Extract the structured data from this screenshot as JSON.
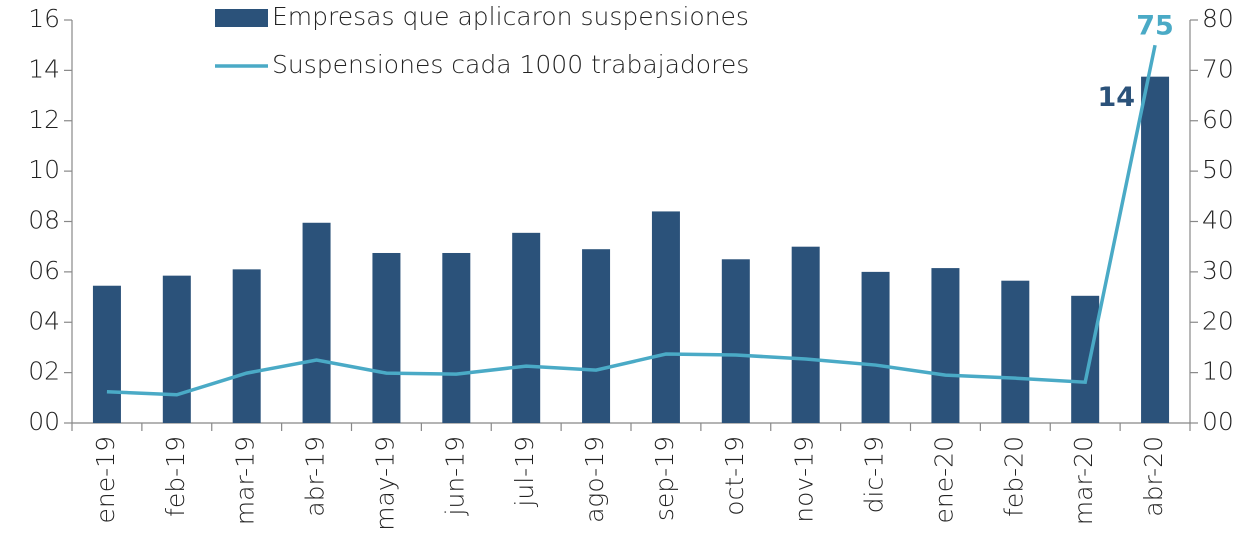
{
  "chart_data": {
    "type": "bar_line",
    "categories": [
      "ene-19",
      "feb-19",
      "mar-19",
      "abr-19",
      "may-19",
      "jun-19",
      "jul-19",
      "ago-19",
      "sep-19",
      "oct-19",
      "nov-19",
      "dic-19",
      "ene-20",
      "feb-20",
      "mar-20",
      "abr-20"
    ],
    "series": [
      {
        "name": "Empresas que aplicaron suspensiones",
        "type": "bar",
        "color": "#2b527a",
        "axis": "y",
        "values": [
          5.45,
          5.85,
          6.1,
          7.95,
          6.75,
          6.75,
          7.55,
          6.9,
          8.4,
          6.5,
          7.0,
          6.0,
          6.15,
          5.65,
          5.05,
          13.75
        ],
        "value_labels": [
          null,
          null,
          null,
          null,
          null,
          null,
          null,
          null,
          null,
          null,
          null,
          null,
          null,
          null,
          null,
          "14"
        ]
      },
      {
        "name": "Suspensiones cada 1000 trabajadores",
        "type": "line",
        "color": "#4aaac6",
        "axis": "y2",
        "values": [
          6.2,
          5.6,
          9.9,
          12.5,
          9.9,
          9.7,
          11.3,
          10.5,
          13.7,
          13.5,
          12.7,
          11.5,
          9.5,
          8.9,
          8.1,
          75
        ],
        "value_labels": [
          null,
          null,
          null,
          null,
          null,
          null,
          null,
          null,
          null,
          null,
          null,
          null,
          null,
          null,
          null,
          "75"
        ]
      }
    ],
    "ylim": [
      0,
      16
    ],
    "yticks": [
      {
        "value": 0,
        "label": "00"
      },
      {
        "value": 2,
        "label": "02"
      },
      {
        "value": 4,
        "label": "04"
      },
      {
        "value": 6,
        "label": "06"
      },
      {
        "value": 8,
        "label": "08"
      },
      10,
      12,
      14,
      16
    ],
    "y2lim": [
      0,
      80
    ],
    "y2ticks": [
      {
        "value": 0,
        "label": "00"
      },
      10,
      20,
      30,
      40,
      50,
      60,
      70,
      80
    ]
  }
}
